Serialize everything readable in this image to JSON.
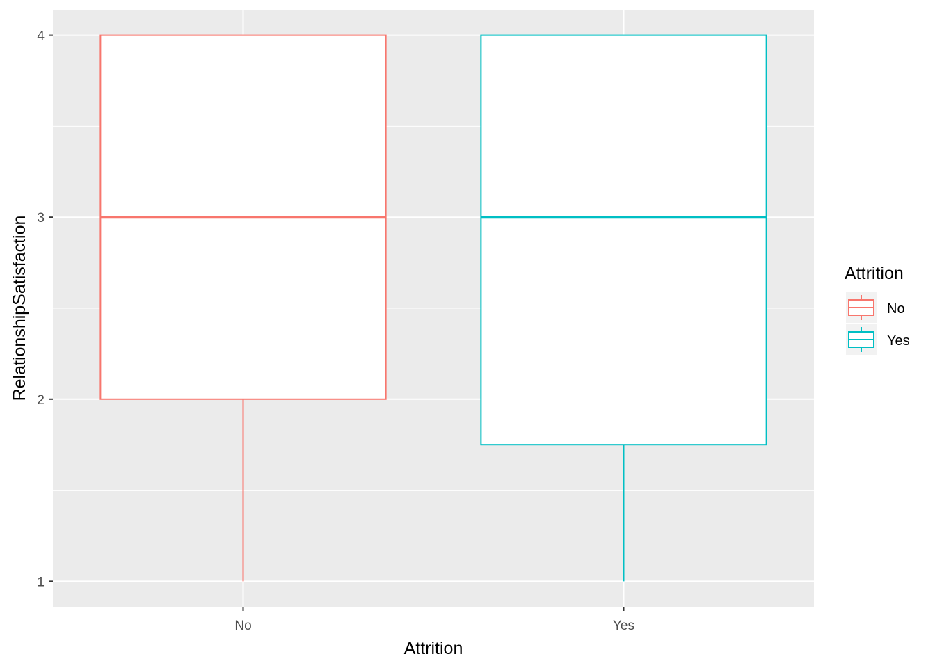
{
  "chart_data": {
    "type": "boxplot",
    "xlabel": "Attrition",
    "ylabel": "RelationshipSatisfaction",
    "categories": [
      "No",
      "Yes"
    ],
    "ylim": [
      0.86,
      4.14
    ],
    "yticks": [
      1,
      2,
      3,
      4
    ],
    "grid": true,
    "legend": {
      "title": "Attrition",
      "placement": "right",
      "entries": [
        "No",
        "Yes"
      ]
    },
    "series": [
      {
        "name": "No",
        "color": "#F8766D",
        "min": 1,
        "q1": 2,
        "median": 3,
        "q3": 4,
        "max": 4
      },
      {
        "name": "Yes",
        "color": "#00BFC4",
        "min": 1,
        "q1": 1.75,
        "median": 3,
        "q3": 4,
        "max": 4
      }
    ]
  }
}
